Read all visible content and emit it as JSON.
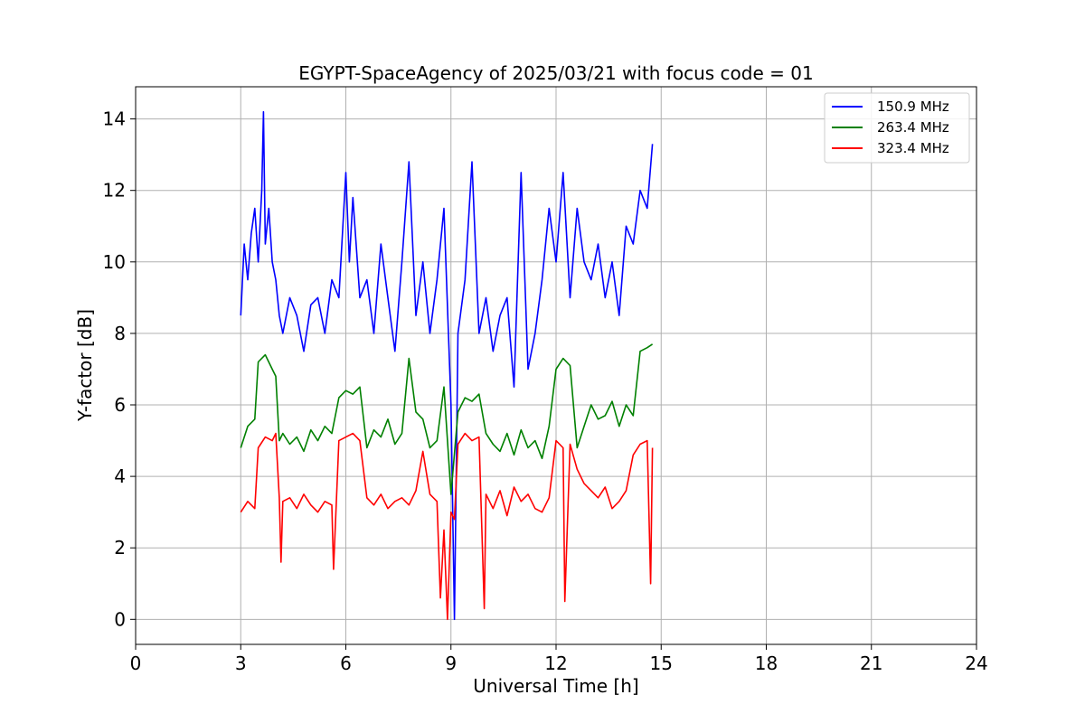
{
  "chart_data": {
    "type": "line",
    "title": "EGYPT-SpaceAgency of 2025/03/21 with focus code = 01",
    "xlabel": "Universal Time [h]",
    "ylabel": "Y-factor [dB]",
    "xlim": [
      0,
      24
    ],
    "ylim": [
      -0.7,
      14.9
    ],
    "xticks": [
      0,
      3,
      6,
      9,
      12,
      15,
      18,
      21,
      24
    ],
    "yticks": [
      0,
      2,
      4,
      6,
      8,
      10,
      12,
      14
    ],
    "grid": true,
    "legend_position": "top-right",
    "colors": {
      "axis": "#000000",
      "grid": "#b0b0b0",
      "background": "#ffffff"
    },
    "series": [
      {
        "name": "150.9 MHz",
        "color": "#0000ff",
        "x": [
          3.0,
          3.1,
          3.2,
          3.3,
          3.4,
          3.5,
          3.6,
          3.65,
          3.7,
          3.8,
          3.9,
          4.0,
          4.1,
          4.2,
          4.4,
          4.6,
          4.8,
          5.0,
          5.2,
          5.4,
          5.6,
          5.8,
          6.0,
          6.1,
          6.2,
          6.4,
          6.6,
          6.8,
          7.0,
          7.2,
          7.4,
          7.6,
          7.8,
          8.0,
          8.2,
          8.4,
          8.6,
          8.8,
          9.0,
          9.1,
          9.2,
          9.4,
          9.6,
          9.8,
          10.0,
          10.2,
          10.4,
          10.6,
          10.8,
          11.0,
          11.2,
          11.4,
          11.6,
          11.8,
          12.0,
          12.2,
          12.4,
          12.6,
          12.8,
          13.0,
          13.2,
          13.4,
          13.6,
          13.8,
          14.0,
          14.2,
          14.4,
          14.6,
          14.75
        ],
        "y": [
          8.5,
          10.5,
          9.5,
          10.8,
          11.5,
          10.0,
          12.0,
          14.2,
          10.5,
          11.5,
          10.0,
          9.5,
          8.5,
          8.0,
          9.0,
          8.5,
          7.5,
          8.8,
          9.0,
          8.0,
          9.5,
          9.0,
          12.5,
          10.0,
          11.8,
          9.0,
          9.5,
          8.0,
          10.5,
          9.0,
          7.5,
          10.0,
          12.8,
          8.5,
          10.0,
          8.0,
          9.5,
          11.5,
          6.0,
          0.0,
          8.0,
          9.5,
          12.8,
          8.0,
          9.0,
          7.5,
          8.5,
          9.0,
          6.5,
          12.5,
          7.0,
          8.0,
          9.5,
          11.5,
          10.0,
          12.5,
          9.0,
          11.5,
          10.0,
          9.5,
          10.5,
          9.0,
          10.0,
          8.5,
          11.0,
          10.5,
          12.0,
          11.5,
          13.3
        ]
      },
      {
        "name": "263.4 MHz",
        "color": "#008000",
        "x": [
          3.0,
          3.2,
          3.4,
          3.5,
          3.7,
          3.9,
          4.0,
          4.1,
          4.2,
          4.4,
          4.6,
          4.8,
          5.0,
          5.2,
          5.4,
          5.6,
          5.8,
          6.0,
          6.2,
          6.4,
          6.6,
          6.8,
          7.0,
          7.2,
          7.4,
          7.6,
          7.8,
          8.0,
          8.2,
          8.4,
          8.6,
          8.8,
          9.0,
          9.2,
          9.4,
          9.6,
          9.8,
          10.0,
          10.2,
          10.4,
          10.6,
          10.8,
          11.0,
          11.2,
          11.4,
          11.6,
          11.8,
          12.0,
          12.2,
          12.4,
          12.6,
          12.8,
          13.0,
          13.2,
          13.4,
          13.6,
          13.8,
          14.0,
          14.2,
          14.4,
          14.6,
          14.75
        ],
        "y": [
          4.8,
          5.4,
          5.6,
          7.2,
          7.4,
          7.0,
          6.8,
          5.0,
          5.2,
          4.9,
          5.1,
          4.7,
          5.3,
          5.0,
          5.4,
          5.2,
          6.2,
          6.4,
          6.3,
          6.5,
          4.8,
          5.3,
          5.1,
          5.6,
          4.9,
          5.2,
          7.3,
          5.8,
          5.6,
          4.8,
          5.0,
          6.5,
          3.5,
          5.8,
          6.2,
          6.1,
          6.3,
          5.2,
          4.9,
          4.7,
          5.2,
          4.6,
          5.3,
          4.8,
          5.0,
          4.5,
          5.4,
          7.0,
          7.3,
          7.1,
          4.8,
          5.4,
          6.0,
          5.6,
          5.7,
          6.1,
          5.4,
          6.0,
          5.7,
          7.5,
          7.6,
          7.7
        ]
      },
      {
        "name": "323.4 MHz",
        "color": "#ff0000",
        "x": [
          3.0,
          3.2,
          3.4,
          3.5,
          3.7,
          3.9,
          4.0,
          4.1,
          4.15,
          4.2,
          4.4,
          4.6,
          4.8,
          5.0,
          5.2,
          5.4,
          5.6,
          5.65,
          5.8,
          6.0,
          6.2,
          6.4,
          6.6,
          6.8,
          7.0,
          7.2,
          7.4,
          7.6,
          7.8,
          8.0,
          8.2,
          8.4,
          8.6,
          8.7,
          8.8,
          8.9,
          9.0,
          9.1,
          9.2,
          9.4,
          9.6,
          9.8,
          9.95,
          10.0,
          10.2,
          10.4,
          10.6,
          10.8,
          11.0,
          11.2,
          11.4,
          11.6,
          11.8,
          12.0,
          12.2,
          12.25,
          12.4,
          12.6,
          12.8,
          13.0,
          13.2,
          13.4,
          13.6,
          13.8,
          14.0,
          14.2,
          14.4,
          14.6,
          14.7,
          14.75
        ],
        "y": [
          3.0,
          3.3,
          3.1,
          4.8,
          5.1,
          5.0,
          5.2,
          3.4,
          1.6,
          3.3,
          3.4,
          3.1,
          3.5,
          3.2,
          3.0,
          3.3,
          3.2,
          1.4,
          5.0,
          5.1,
          5.2,
          5.0,
          3.4,
          3.2,
          3.5,
          3.1,
          3.3,
          3.4,
          3.2,
          3.6,
          4.7,
          3.5,
          3.3,
          0.6,
          2.5,
          0.0,
          3.0,
          2.8,
          4.9,
          5.2,
          5.0,
          5.1,
          0.3,
          3.5,
          3.1,
          3.6,
          2.9,
          3.7,
          3.3,
          3.5,
          3.1,
          3.0,
          3.4,
          5.0,
          4.8,
          0.5,
          4.9,
          4.2,
          3.8,
          3.6,
          3.4,
          3.7,
          3.1,
          3.3,
          3.6,
          4.6,
          4.9,
          5.0,
          1.0,
          4.8
        ]
      }
    ]
  }
}
